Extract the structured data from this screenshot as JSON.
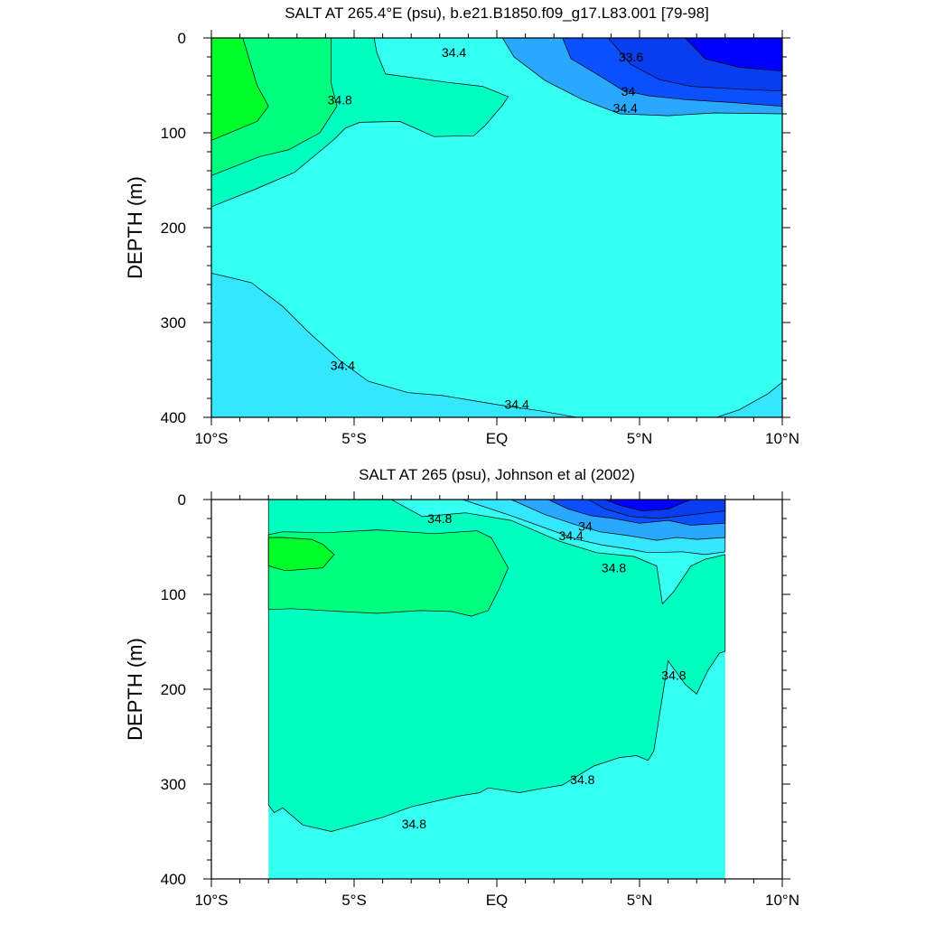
{
  "colors": {
    "c34_0": "#0a50ff",
    "c34_2": "#2aa8ff",
    "c34_4": "#35e6ff",
    "c34_6": "#35fff0",
    "c34_8": "#00ffc0",
    "c35_0": "#00ff7f",
    "c35_2": "#00ff28",
    "c33_6": "#0000ff",
    "c33_8": "#0a3cf0",
    "missing": "#ffffff"
  },
  "chart_data": [
    {
      "type": "contour",
      "title": "SALT AT 265.4°E (psu), b.e21.B1850.f09_g17.L83.001 [79-98]",
      "xlabel": "",
      "ylabel": "DEPTH (m)",
      "xlim": [
        -10,
        10
      ],
      "ylim": [
        400,
        0
      ],
      "x_ticks": [
        -10,
        -5,
        0,
        5,
        10
      ],
      "x_tick_labels": [
        "10°S",
        "5°S",
        "EQ",
        "5°N",
        "10°N"
      ],
      "y_ticks": [
        0,
        100,
        200,
        300,
        400
      ],
      "y_tick_labels": [
        "0",
        "100",
        "200",
        "300",
        "400"
      ],
      "contour_labels": [
        {
          "text": "34.4",
          "x": -1.5,
          "y": 15
        },
        {
          "text": "33.6",
          "x": 4.7,
          "y": 20
        },
        {
          "text": "34.8",
          "x": -5.5,
          "y": 65
        },
        {
          "text": "34",
          "x": 4.6,
          "y": 56
        },
        {
          "text": "34.4",
          "x": 4.5,
          "y": 74
        },
        {
          "text": "34.4",
          "x": -5.4,
          "y": 345
        },
        {
          "text": "34.4",
          "x": 0.7,
          "y": 386
        }
      ],
      "regions": [
        {
          "level": "34.4-34.6",
          "color": "c34_4",
          "pts": [
            [
              -10,
              0
            ],
            [
              10,
              0
            ],
            [
              10,
              400
            ],
            [
              -10,
              400
            ]
          ]
        },
        {
          "level": "34.6-34.8",
          "color": "c34_6",
          "pts": [
            [
              -10,
              0
            ],
            [
              10,
              0
            ],
            [
              10,
              363
            ],
            [
              9.5,
              375
            ],
            [
              8.5,
              392
            ],
            [
              7.7,
              400
            ],
            [
              2.8,
              400
            ],
            [
              1.5,
              393
            ],
            [
              0.1,
              387
            ],
            [
              -1.9,
              377
            ],
            [
              -3.1,
              374
            ],
            [
              -4.5,
              362
            ],
            [
              -5.5,
              340
            ],
            [
              -6.6,
              310
            ],
            [
              -7.5,
              283
            ],
            [
              -8.6,
              258
            ],
            [
              -10,
              248
            ]
          ]
        },
        {
          "level": "34.8-35.0",
          "color": "c34_8",
          "pts": [
            [
              -10,
              0
            ],
            [
              -4.3,
              0
            ],
            [
              -4.2,
              16
            ],
            [
              -3.9,
              38
            ],
            [
              -1.7,
              47
            ],
            [
              -0.5,
              51
            ],
            [
              0.4,
              62
            ],
            [
              0.2,
              71
            ],
            [
              -0.4,
              92
            ],
            [
              -0.8,
              103
            ],
            [
              -2.2,
              104
            ],
            [
              -3.4,
              88
            ],
            [
              -4.8,
              89
            ],
            [
              -5.3,
              95
            ],
            [
              -5.7,
              107
            ],
            [
              -7.1,
              142
            ],
            [
              -8.5,
              160
            ],
            [
              -10,
              178
            ]
          ]
        },
        {
          "level": "35.0-35.2",
          "color": "c35_0",
          "pts": [
            [
              -10,
              0
            ],
            [
              -5.8,
              0
            ],
            [
              -5.8,
              48
            ],
            [
              -5.6,
              72
            ],
            [
              -6.2,
              100
            ],
            [
              -7.3,
              118
            ],
            [
              -8.3,
              125
            ],
            [
              -10,
              145
            ]
          ]
        },
        {
          "level": "35.2-35.4",
          "color": "c35_2",
          "pts": [
            [
              -10,
              0
            ],
            [
              -8.9,
              0
            ],
            [
              -8.4,
              50
            ],
            [
              -8.0,
              72
            ],
            [
              -8.4,
              88
            ],
            [
              -9.6,
              103
            ],
            [
              -10,
              108
            ]
          ]
        },
        {
          "level": "34.2-34.4",
          "color": "c34_2",
          "pts": [
            [
              0.2,
              0
            ],
            [
              10,
              0
            ],
            [
              10,
              80
            ],
            [
              7.6,
              79
            ],
            [
              6.0,
              82
            ],
            [
              4.3,
              80
            ],
            [
              3.0,
              65
            ],
            [
              1.7,
              45
            ],
            [
              0.6,
              20
            ]
          ]
        },
        {
          "level": "34.0-34.2",
          "color": "c34_0",
          "pts": [
            [
              2.3,
              0
            ],
            [
              10,
              0
            ],
            [
              10,
              72
            ],
            [
              8.2,
              68
            ],
            [
              6.6,
              65
            ],
            [
              5.3,
              61
            ],
            [
              4.4,
              55
            ],
            [
              3.6,
              40
            ],
            [
              2.6,
              22
            ]
          ]
        },
        {
          "level": "33.8-34.0",
          "color": "c33_8",
          "pts": [
            [
              3.9,
              0
            ],
            [
              10,
              0
            ],
            [
              10,
              56
            ],
            [
              8.5,
              54
            ],
            [
              6.8,
              51
            ],
            [
              5.7,
              44
            ],
            [
              4.7,
              28
            ]
          ]
        },
        {
          "level": "33.6-33.8",
          "color": "c33_6",
          "pts": [
            [
              6.6,
              0
            ],
            [
              10,
              0
            ],
            [
              10,
              35
            ],
            [
              8.5,
              31
            ],
            [
              7.3,
              22
            ]
          ]
        }
      ]
    },
    {
      "type": "contour",
      "title": "SALT AT 265 (psu), Johnson et al (2002)",
      "xlabel": "",
      "ylabel": "DEPTH (m)",
      "xlim": [
        -10,
        10
      ],
      "ylim": [
        400,
        0
      ],
      "data_xlim": [
        -8,
        8
      ],
      "x_ticks": [
        -10,
        -5,
        0,
        5,
        10
      ],
      "x_tick_labels": [
        "10°S",
        "5°S",
        "EQ",
        "5°N",
        "10°N"
      ],
      "y_ticks": [
        0,
        100,
        200,
        300,
        400
      ],
      "y_tick_labels": [
        "0",
        "100",
        "200",
        "300",
        "400"
      ],
      "contour_labels": [
        {
          "text": "34.8",
          "x": -2.0,
          "y": 20
        },
        {
          "text": "34",
          "x": 3.1,
          "y": 28
        },
        {
          "text": "34.4",
          "x": 2.6,
          "y": 38
        },
        {
          "text": "34.8",
          "x": 4.1,
          "y": 72
        },
        {
          "text": "34.8",
          "x": 6.2,
          "y": 185
        },
        {
          "text": "34.8",
          "x": 3.0,
          "y": 295
        },
        {
          "text": "34.8",
          "x": -2.9,
          "y": 342
        }
      ],
      "regions": [
        {
          "level": "34.6-34.8",
          "color": "c34_6",
          "pts": [
            [
              -8,
              0
            ],
            [
              8,
              0
            ],
            [
              8,
              400
            ],
            [
              -8,
              400
            ]
          ]
        },
        {
          "level": "34.8-35.0",
          "color": "c34_8",
          "pts": [
            [
              -8,
              0
            ],
            [
              -3.7,
              0
            ],
            [
              -2.6,
              18
            ],
            [
              -1.1,
              14
            ],
            [
              0.5,
              22
            ],
            [
              2.2,
              44
            ],
            [
              3.5,
              56
            ],
            [
              4.8,
              60
            ],
            [
              5.6,
              70
            ],
            [
              5.8,
              110
            ],
            [
              6.2,
              97
            ],
            [
              6.8,
              70
            ],
            [
              7.3,
              63
            ],
            [
              8,
              58
            ],
            [
              8,
              160
            ],
            [
              7.8,
              162
            ],
            [
              7.4,
              180
            ],
            [
              7.0,
              205
            ],
            [
              6.6,
              195
            ],
            [
              6.0,
              170
            ],
            [
              5.5,
              265
            ],
            [
              5.3,
              275
            ],
            [
              4.9,
              270
            ],
            [
              4.3,
              272
            ],
            [
              3.4,
              281
            ],
            [
              2.3,
              301
            ],
            [
              1.5,
              305
            ],
            [
              0.8,
              309
            ],
            [
              -0.3,
              304
            ],
            [
              -0.6,
              309
            ],
            [
              -1.4,
              313
            ],
            [
              -3.0,
              324
            ],
            [
              -4.0,
              335
            ],
            [
              -5.2,
              345
            ],
            [
              -5.8,
              350
            ],
            [
              -6.8,
              343
            ],
            [
              -7.5,
              325
            ],
            [
              -7.8,
              330
            ],
            [
              -8,
              322
            ]
          ]
        },
        {
          "level": "35.0-35.2",
          "color": "c35_0",
          "pts": [
            [
              -8,
              37
            ],
            [
              -7.5,
              34
            ],
            [
              -6.0,
              35
            ],
            [
              -4.2,
              32
            ],
            [
              -2.2,
              36
            ],
            [
              -0.7,
              33
            ],
            [
              -0.2,
              40
            ],
            [
              0.4,
              72
            ],
            [
              0.1,
              93
            ],
            [
              -0.3,
              117
            ],
            [
              -0.9,
              123
            ],
            [
              -1.6,
              118
            ],
            [
              -2.7,
              117
            ],
            [
              -4.2,
              120
            ],
            [
              -5.5,
              118
            ],
            [
              -7.2,
              115
            ],
            [
              -8,
              116
            ]
          ]
        },
        {
          "level": "35.2-35.4",
          "color": "c35_2",
          "pts": [
            [
              -8,
              40
            ],
            [
              -7.5,
              40
            ],
            [
              -6.5,
              42
            ],
            [
              -6.1,
              47
            ],
            [
              -5.7,
              58
            ],
            [
              -6.1,
              72
            ],
            [
              -7.4,
              75
            ],
            [
              -8,
              70
            ]
          ]
        },
        {
          "level": "34.4-34.6",
          "color": "c34_4",
          "pts": [
            [
              -1.2,
              0
            ],
            [
              8,
              0
            ],
            [
              8,
              55
            ],
            [
              7.3,
              58
            ],
            [
              6.5,
              55
            ],
            [
              5.3,
              56
            ],
            [
              4.6,
              52
            ],
            [
              3.7,
              48
            ],
            [
              2.8,
              42
            ],
            [
              1.7,
              30
            ],
            [
              0.5,
              17
            ]
          ]
        },
        {
          "level": "34.2-34.4",
          "color": "c34_2",
          "pts": [
            [
              0.5,
              0
            ],
            [
              8,
              0
            ],
            [
              8,
              40
            ],
            [
              7.0,
              42
            ],
            [
              6.3,
              40
            ],
            [
              5.6,
              43
            ],
            [
              4.6,
              38
            ],
            [
              3.6,
              34
            ],
            [
              2.7,
              26
            ],
            [
              1.7,
              16
            ]
          ]
        },
        {
          "level": "34.0-34.2",
          "color": "c34_0",
          "pts": [
            [
              1.8,
              0
            ],
            [
              8,
              0
            ],
            [
              8,
              25
            ],
            [
              6.8,
              27
            ],
            [
              6.0,
              22
            ],
            [
              5.0,
              25
            ],
            [
              4.1,
              20
            ],
            [
              3.3,
              17
            ],
            [
              2.5,
              10
            ]
          ]
        },
        {
          "level": "33.8-34.0",
          "color": "c33_8",
          "pts": [
            [
              3.2,
              0
            ],
            [
              8,
              0
            ],
            [
              8,
              12
            ],
            [
              6.8,
              16
            ],
            [
              5.7,
              20
            ],
            [
              4.7,
              18
            ],
            [
              3.8,
              10
            ]
          ]
        },
        {
          "level": "33.6-33.8",
          "color": "c33_6",
          "pts": [
            [
              3.8,
              0
            ],
            [
              6.8,
              0
            ],
            [
              6.0,
              10
            ],
            [
              5.1,
              12
            ],
            [
              4.3,
              6
            ]
          ]
        }
      ]
    }
  ]
}
